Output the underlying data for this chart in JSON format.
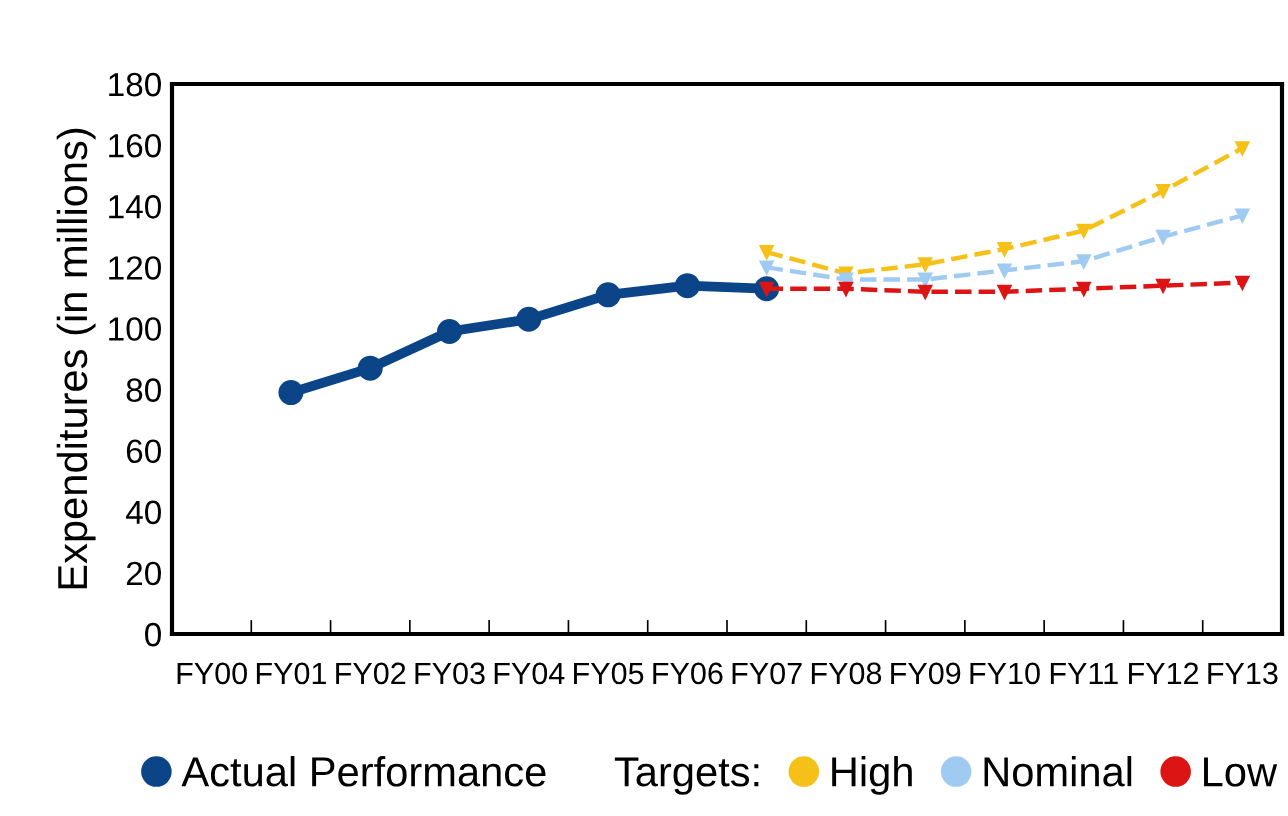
{
  "chart_data": {
    "type": "line",
    "ylabel": "Expenditures (in millions)",
    "categories": [
      "FY00",
      "FY01",
      "FY02",
      "FY03",
      "FY04",
      "FY05",
      "FY06",
      "FY07",
      "FY08",
      "FY09",
      "FY10",
      "FY11",
      "FY12",
      "FY13"
    ],
    "ylim": [
      0,
      180
    ],
    "yticks": [
      0,
      20,
      40,
      60,
      80,
      100,
      120,
      140,
      160,
      180
    ],
    "grid": false,
    "legend": "bottom",
    "annotations": [
      "Targets:"
    ],
    "series": [
      {
        "name": "Actual Performance",
        "color": "#0b4587",
        "marker": "circle",
        "line_style": "solid",
        "values": [
          null,
          79,
          87,
          99,
          103,
          111,
          114,
          113,
          null,
          null,
          null,
          null,
          null,
          null
        ]
      },
      {
        "name": "High",
        "color": "#f5c118",
        "marker": "triangle",
        "line_style": "dashed",
        "values": [
          null,
          null,
          null,
          null,
          null,
          null,
          null,
          125,
          118,
          121,
          126,
          132,
          145,
          159
        ]
      },
      {
        "name": "Nominal",
        "color": "#9fcbf2",
        "marker": "triangle",
        "line_style": "dashed",
        "values": [
          null,
          null,
          null,
          null,
          null,
          null,
          null,
          120,
          116,
          116,
          119,
          122,
          130,
          137
        ]
      },
      {
        "name": "Low",
        "color": "#dc1414",
        "marker": "triangle",
        "line_style": "dashed",
        "values": [
          null,
          null,
          null,
          null,
          null,
          null,
          null,
          113,
          113,
          112,
          112,
          113,
          114,
          115
        ]
      }
    ]
  }
}
